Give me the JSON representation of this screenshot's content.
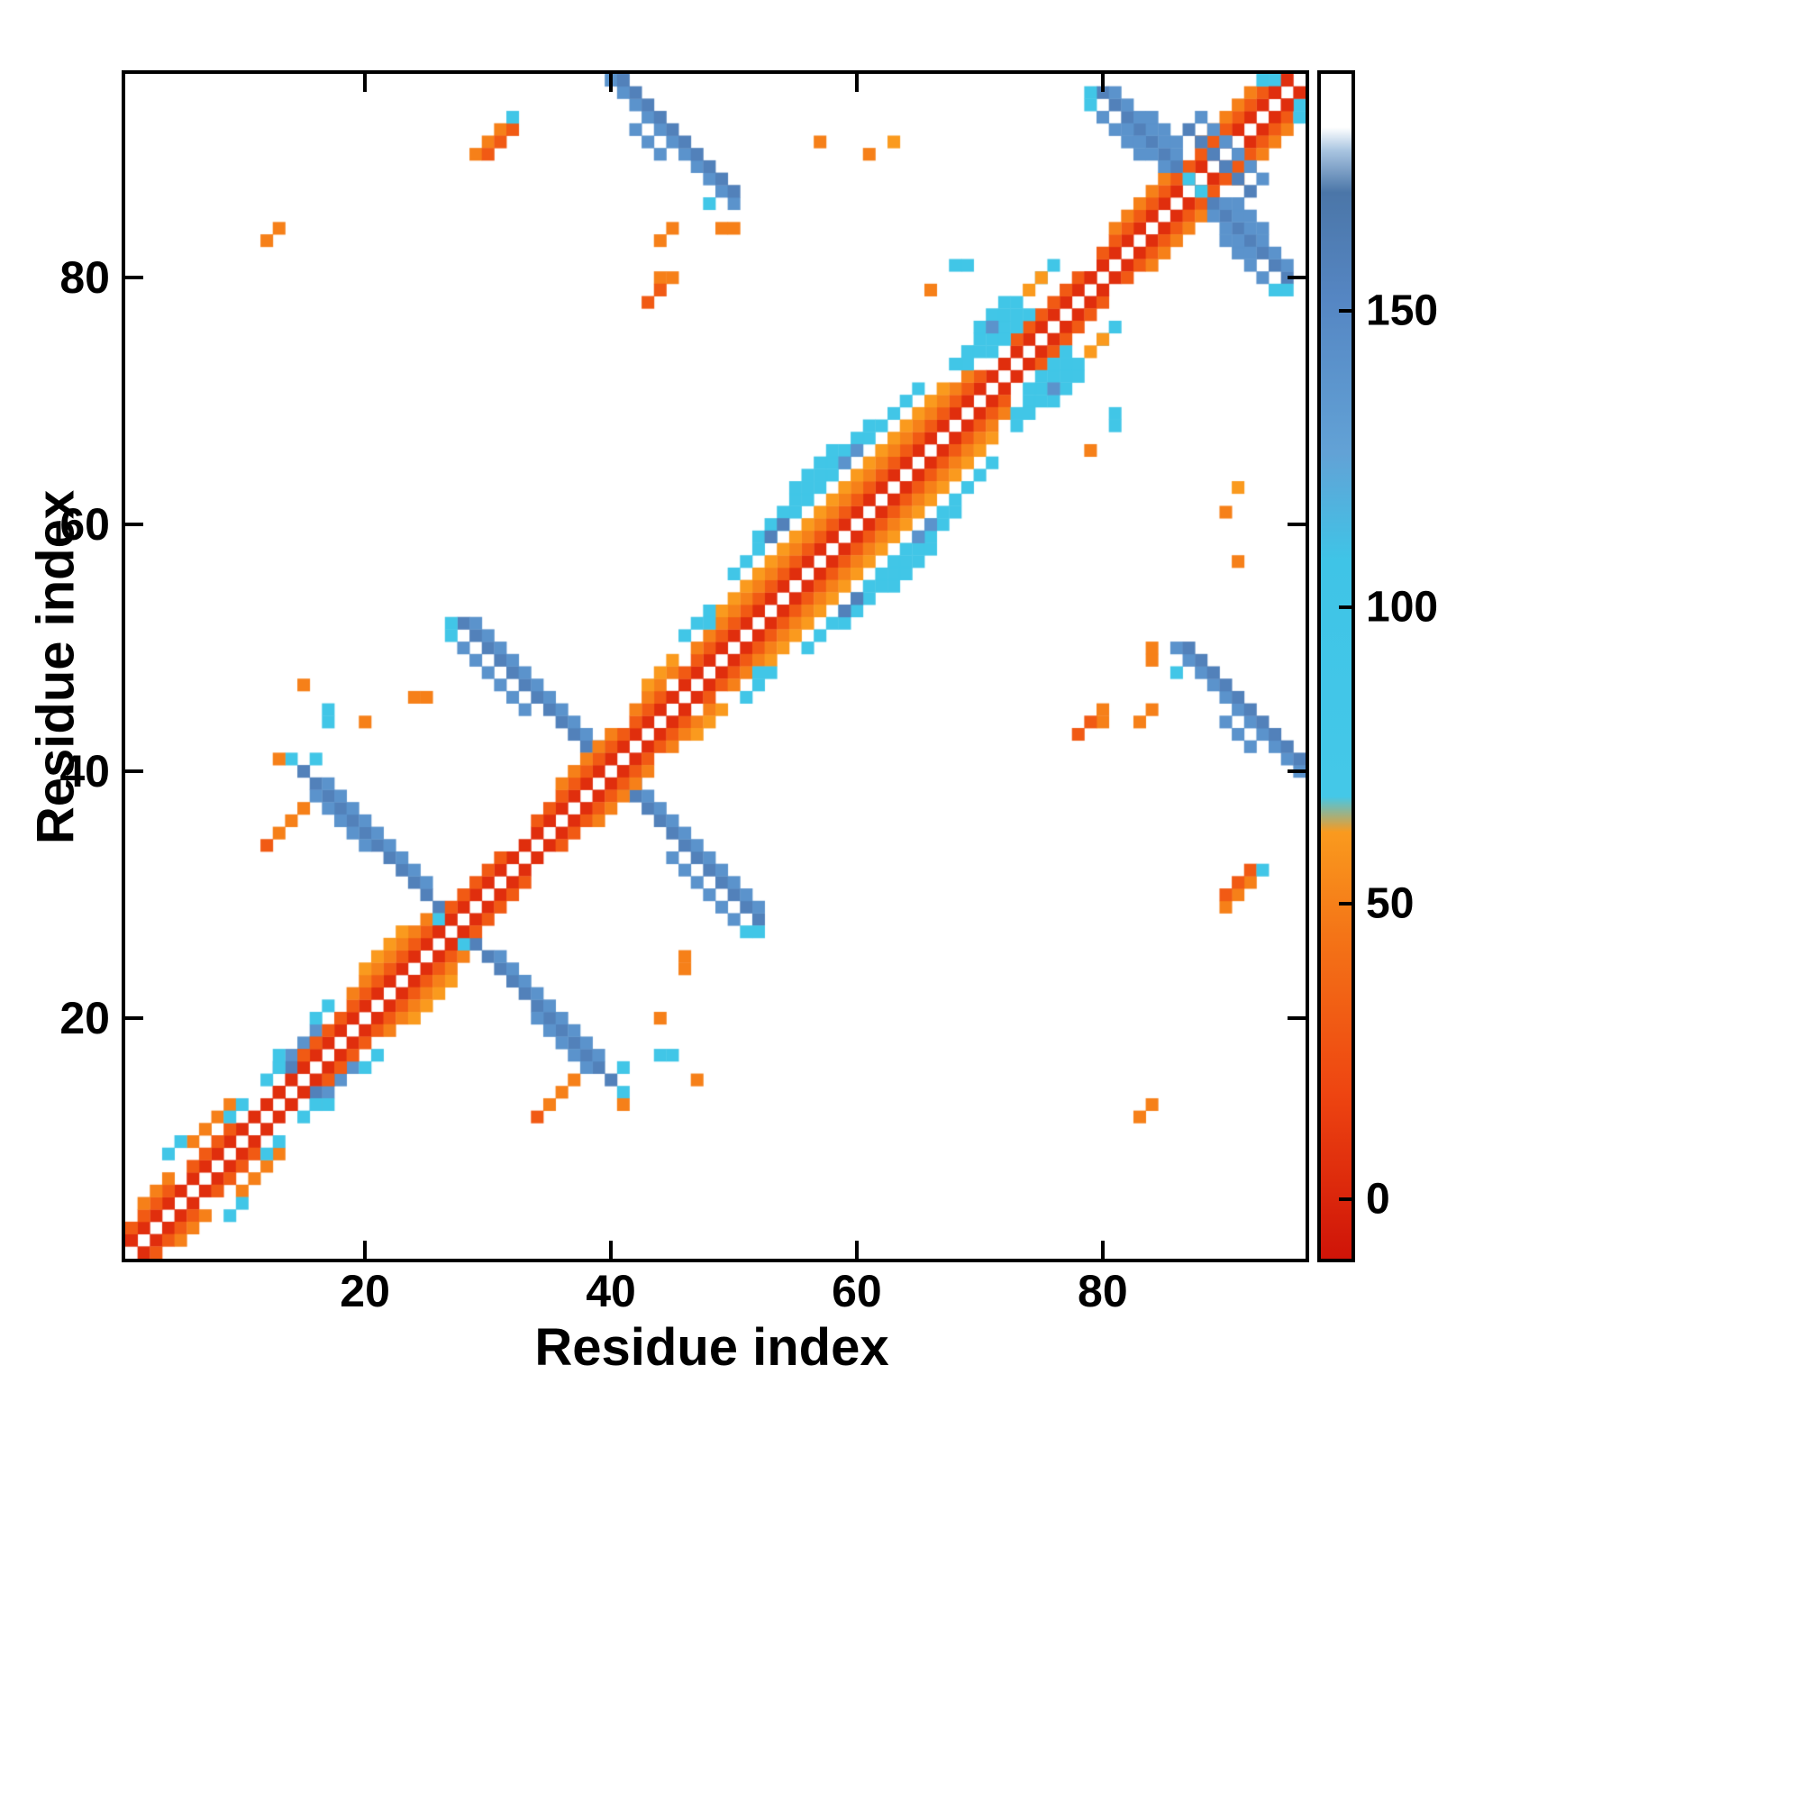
{
  "figure": {
    "background": "#ffffff",
    "axis_color": "#000000"
  },
  "chart_data": {
    "type": "heatmap",
    "title": "",
    "xlabel": "Residue index",
    "ylabel": "Residue index",
    "x_ticks": [
      20,
      40,
      60,
      80
    ],
    "y_ticks": [
      20,
      40,
      60,
      80
    ],
    "axis_min": 0.5,
    "axis_max": 96.5,
    "grid_size": 96,
    "symmetric": true,
    "background_value_color": "#ffffff",
    "value_domain": [
      -10,
      190
    ],
    "colorbar": {
      "ticks": [
        0,
        50,
        100,
        150
      ],
      "position": "right"
    },
    "colormap": [
      [
        -10,
        "#cf1408"
      ],
      [
        18,
        "#ee4511"
      ],
      [
        45,
        "#f47517"
      ],
      [
        62,
        "#fa9a1e"
      ],
      [
        68,
        "#44c8e8"
      ],
      [
        108,
        "#3fc4e7"
      ],
      [
        126,
        "#62a2d6"
      ],
      [
        152,
        "#5586c3"
      ],
      [
        170,
        "#4b76a8"
      ],
      [
        177,
        "#a8c4e0"
      ],
      [
        181,
        "#ffffff"
      ],
      [
        190,
        "#ffffff"
      ]
    ],
    "cells_rle_format": "[i0, j0, di, dj, count, value] ; symmetric cells (j,i) are also plotted",
    "cells_rle": [
      [
        1,
        2,
        1,
        1,
        13,
        5
      ],
      [
        1,
        3,
        1,
        1,
        4,
        30
      ],
      [
        6,
        8,
        1,
        1,
        4,
        30
      ],
      [
        2,
        5,
        1,
        1,
        3,
        50
      ],
      [
        6,
        10,
        1,
        1,
        4,
        50
      ],
      [
        4,
        9,
        1,
        1,
        2,
        90
      ],
      [
        9,
        12,
        1,
        1,
        2,
        90
      ],
      [
        13,
        16,
        1,
        1,
        4,
        140
      ],
      [
        14,
        16,
        1,
        1,
        3,
        158
      ],
      [
        12,
        15,
        1,
        1,
        2,
        90
      ],
      [
        16,
        20,
        1,
        1,
        2,
        90
      ],
      [
        13,
        17,
        0,
        0,
        1,
        90
      ],
      [
        13,
        14,
        1,
        1,
        14,
        5
      ],
      [
        15,
        17,
        1,
        1,
        3,
        30
      ],
      [
        18,
        20,
        1,
        1,
        9,
        30
      ],
      [
        19,
        22,
        1,
        1,
        7,
        50
      ],
      [
        20,
        24,
        1,
        1,
        4,
        62
      ],
      [
        15,
        40,
        1,
        -1,
        12,
        158
      ],
      [
        17,
        39,
        1,
        -1,
        9,
        140
      ],
      [
        16,
        38,
        1,
        -1,
        5,
        140
      ],
      [
        14,
        41,
        0,
        0,
        1,
        90
      ],
      [
        26,
        28,
        0,
        0,
        1,
        90
      ],
      [
        13,
        35,
        1,
        1,
        3,
        50
      ],
      [
        12,
        34,
        0,
        0,
        1,
        30
      ],
      [
        20,
        44,
        0,
        0,
        1,
        50
      ],
      [
        24,
        46,
        1,
        0,
        2,
        50
      ],
      [
        15,
        47,
        0,
        0,
        1,
        50
      ],
      [
        17,
        44,
        0,
        1,
        2,
        90
      ],
      [
        13,
        41,
        0,
        0,
        1,
        50
      ],
      [
        16,
        41,
        0,
        0,
        1,
        90
      ],
      [
        28,
        52,
        1,
        -1,
        12,
        158
      ],
      [
        29,
        52,
        1,
        -1,
        11,
        140
      ],
      [
        28,
        50,
        1,
        -1,
        6,
        140
      ],
      [
        27,
        52,
        0,
        0,
        1,
        90
      ],
      [
        27,
        51,
        0,
        0,
        1,
        90
      ],
      [
        40,
        42,
        0,
        0,
        1,
        140
      ],
      [
        26,
        27,
        1,
        1,
        20,
        5
      ],
      [
        27,
        29,
        1,
        1,
        5,
        30
      ],
      [
        34,
        36,
        1,
        1,
        11,
        30
      ],
      [
        36,
        39,
        1,
        1,
        5,
        50
      ],
      [
        42,
        45,
        1,
        1,
        4,
        50
      ],
      [
        43,
        47,
        1,
        1,
        3,
        62
      ],
      [
        45,
        46,
        1,
        1,
        27,
        5
      ],
      [
        46,
        48,
        1,
        1,
        25,
        30
      ],
      [
        47,
        50,
        1,
        1,
        23,
        50
      ],
      [
        49,
        53,
        1,
        1,
        19,
        62
      ],
      [
        46,
        51,
        1,
        1,
        3,
        90
      ],
      [
        50,
        56,
        1,
        1,
        16,
        90
      ],
      [
        52,
        59,
        1,
        1,
        10,
        90
      ],
      [
        55,
        63,
        1,
        1,
        4,
        90
      ],
      [
        53,
        59,
        1,
        1,
        2,
        158
      ],
      [
        59,
        65,
        1,
        1,
        2,
        140
      ],
      [
        48,
        52,
        0,
        0,
        1,
        90
      ],
      [
        72,
        73,
        1,
        1,
        8,
        5
      ],
      [
        73,
        75,
        1,
        1,
        6,
        30
      ],
      [
        69,
        73,
        1,
        1,
        5,
        90
      ],
      [
        69,
        74,
        1,
        1,
        5,
        90
      ],
      [
        68,
        73,
        1,
        1,
        2,
        90
      ],
      [
        70,
        76,
        1,
        1,
        3,
        90
      ],
      [
        71,
        74,
        1,
        1,
        4,
        90
      ],
      [
        71,
        76,
        0,
        0,
        1,
        140
      ],
      [
        75,
        80,
        1,
        1,
        2,
        90
      ],
      [
        74,
        79,
        1,
        1,
        2,
        62
      ],
      [
        68,
        81,
        1,
        0,
        2,
        90
      ],
      [
        66,
        79,
        0,
        0,
        1,
        50
      ],
      [
        79,
        80,
        1,
        1,
        16,
        5
      ],
      [
        80,
        82,
        1,
        1,
        14,
        30
      ],
      [
        81,
        84,
        1,
        1,
        5,
        50
      ],
      [
        88,
        91,
        1,
        1,
        5,
        50
      ],
      [
        80,
        95,
        1,
        -1,
        7,
        158
      ],
      [
        81,
        95,
        1,
        -1,
        6,
        140
      ],
      [
        80,
        93,
        1,
        -1,
        4,
        140
      ],
      [
        82,
        92,
        1,
        -1,
        4,
        140
      ],
      [
        84,
        93,
        1,
        -1,
        3,
        140
      ],
      [
        87,
        92,
        1,
        -1,
        4,
        158
      ],
      [
        88,
        93,
        1,
        -1,
        4,
        140
      ],
      [
        79,
        95,
        0,
        0,
        1,
        90
      ],
      [
        87,
        88,
        0,
        0,
        1,
        90
      ],
      [
        79,
        94,
        0,
        0,
        1,
        90
      ],
      [
        93,
        96,
        1,
        0,
        2,
        90
      ],
      [
        94,
        95,
        1,
        1,
        2,
        5
      ],
      [
        40,
        96,
        1,
        -1,
        11,
        140
      ],
      [
        41,
        96,
        1,
        -1,
        10,
        158
      ],
      [
        42,
        92,
        1,
        -1,
        3,
        140
      ],
      [
        48,
        86,
        0,
        0,
        1,
        90
      ],
      [
        49,
        84,
        1,
        0,
        2,
        50
      ],
      [
        29,
        90,
        1,
        1,
        3,
        50
      ],
      [
        30,
        90,
        1,
        1,
        3,
        30
      ],
      [
        32,
        93,
        0,
        0,
        1,
        90
      ],
      [
        12,
        83,
        1,
        1,
        2,
        50
      ],
      [
        44,
        80,
        1,
        0,
        2,
        50
      ],
      [
        43,
        78,
        1,
        1,
        2,
        30
      ],
      [
        57,
        91,
        0,
        0,
        1,
        50
      ],
      [
        63,
        91,
        0,
        0,
        1,
        62
      ],
      [
        61,
        90,
        0,
        0,
        1,
        50
      ],
      [
        44,
        83,
        1,
        1,
        2,
        50
      ]
    ]
  }
}
